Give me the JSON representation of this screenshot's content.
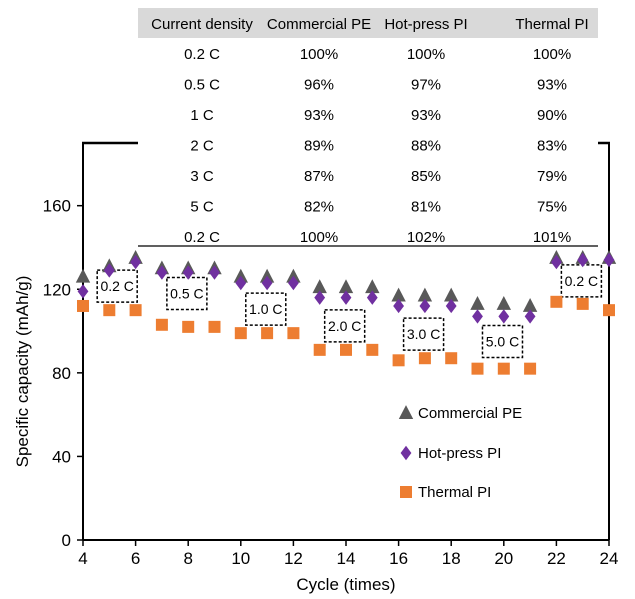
{
  "chart_data": {
    "type": "scatter",
    "xlabel": "Cycle (times)",
    "ylabel": "Specific capacity (mAh/g)",
    "xlim": [
      4,
      24
    ],
    "ylim": [
      0,
      190
    ],
    "xticks": [
      4,
      6,
      8,
      10,
      12,
      14,
      16,
      18,
      20,
      22,
      24
    ],
    "yticks": [
      0,
      40,
      80,
      120,
      160
    ],
    "grid": false,
    "legend_position": "bottom-right",
    "colors": {
      "Commercial PE": "#595959",
      "Hot-press PI": "#7030a0",
      "Thermal PI": "#ed7d31"
    },
    "markers": {
      "Commercial PE": "triangle",
      "Hot-press PI": "diamond",
      "Thermal PI": "square"
    },
    "series": [
      {
        "name": "Commercial PE",
        "x": [
          4,
          5,
          6,
          7,
          8,
          9,
          10,
          11,
          12,
          13,
          14,
          15,
          16,
          17,
          18,
          19,
          20,
          21,
          22,
          23,
          24
        ],
        "y": [
          126,
          131,
          135,
          130,
          130,
          130,
          126,
          126,
          126,
          121,
          121,
          121,
          117,
          117,
          117,
          113,
          113,
          112,
          135,
          135,
          135
        ]
      },
      {
        "name": "Hot-press PI",
        "x": [
          4,
          5,
          6,
          7,
          8,
          9,
          10,
          11,
          12,
          13,
          14,
          15,
          16,
          17,
          18,
          19,
          20,
          21,
          22,
          23,
          24
        ],
        "y": [
          119,
          129,
          133,
          128,
          128,
          128,
          123,
          123,
          123,
          116,
          116,
          116,
          112,
          112,
          112,
          107,
          107,
          107,
          133,
          134,
          134
        ]
      },
      {
        "name": "Thermal PI",
        "x": [
          4,
          5,
          6,
          7,
          8,
          9,
          10,
          11,
          12,
          13,
          14,
          15,
          16,
          17,
          18,
          19,
          20,
          21,
          22,
          23,
          24
        ],
        "y": [
          112,
          110,
          110,
          103,
          102,
          102,
          99,
          99,
          99,
          91,
          91,
          91,
          86,
          87,
          87,
          82,
          82,
          82,
          114,
          113,
          110
        ]
      }
    ],
    "annotations": [
      {
        "text": "0.2 C",
        "x": 5.3,
        "y": 121.5
      },
      {
        "text": "0.5 C",
        "x": 7.95,
        "y": 118
      },
      {
        "text": "1.0 C",
        "x": 10.95,
        "y": 110.5
      },
      {
        "text": "2.0 C",
        "x": 13.95,
        "y": 102.5
      },
      {
        "text": "3.0 C",
        "x": 16.95,
        "y": 98.5
      },
      {
        "text": "5.0 C",
        "x": 19.95,
        "y": 95
      },
      {
        "text": "0.2 C",
        "x": 22.95,
        "y": 124
      }
    ],
    "table": {
      "headers": [
        "Current density",
        "Commercial PE",
        "Hot-press PI",
        "Thermal PI"
      ],
      "rows": [
        [
          "0.2 C",
          "100%",
          "100%",
          "100%"
        ],
        [
          "0.5 C",
          "96%",
          "97%",
          "93%"
        ],
        [
          "1 C",
          "93%",
          "93%",
          "90%"
        ],
        [
          "2 C",
          "89%",
          "88%",
          "83%"
        ],
        [
          "3 C",
          "87%",
          "85%",
          "79%"
        ],
        [
          "5 C",
          "82%",
          "81%",
          "75%"
        ],
        [
          "0.2 C",
          "100%",
          "102%",
          "101%"
        ]
      ]
    }
  }
}
